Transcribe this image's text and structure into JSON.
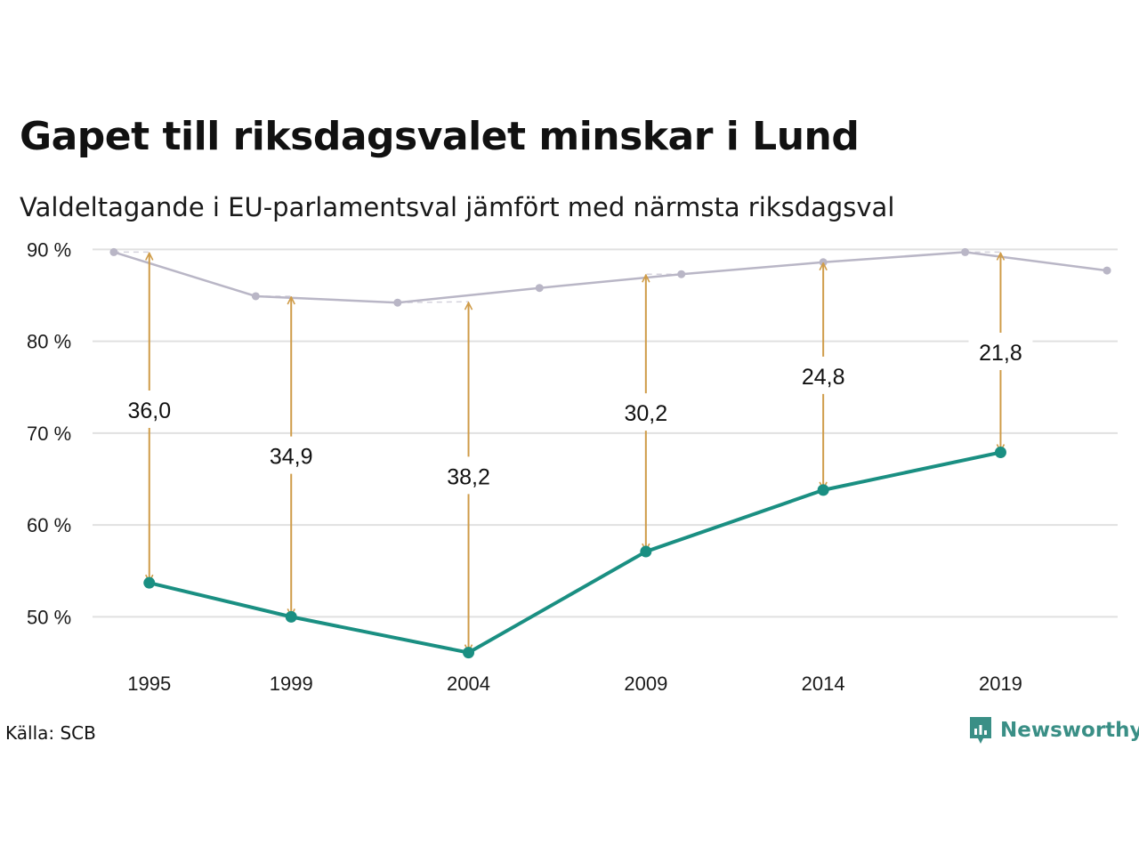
{
  "header": {
    "title": "Gapet till riksdagsvalet minskar i Lund",
    "subtitle": "Valdeltagande i EU-parlamentsval jämfört med närmsta riksdagsval"
  },
  "footer": {
    "source": "Källa: SCB",
    "brand": "Newsworthy"
  },
  "colors": {
    "eu_line": "#1a8f82",
    "riksdag_line": "#b9b6c6",
    "arrow": "#cf9c49",
    "grid": "#e0e0e0",
    "brand": "#3a8f86"
  },
  "chart_data": {
    "type": "line",
    "title": "Gapet till riksdagsvalet minskar i Lund",
    "subtitle": "Valdeltagande i EU-parlamentsval jämfört med närmsta riksdagsval",
    "y_ticks": [
      50,
      60,
      70,
      80,
      90
    ],
    "y_tick_labels": [
      "50 %",
      "60 %",
      "70 %",
      "80 %",
      "90 %"
    ],
    "ylim": [
      45,
      91
    ],
    "xlim": [
      1993.4,
      2022.3
    ],
    "x_ticks": [
      1995,
      1999,
      2004,
      2009,
      2014,
      2019
    ],
    "x_tick_labels": [
      "1995",
      "1999",
      "2004",
      "2009",
      "2014",
      "2019"
    ],
    "grid": "horizontal",
    "series": [
      {
        "key": "eu",
        "x": [
          1995,
          1999,
          2004,
          2009,
          2014,
          2019
        ],
        "values": [
          53.7,
          50.0,
          46.1,
          57.1,
          63.8,
          67.9
        ]
      },
      {
        "key": "riksdag",
        "x": [
          1994,
          1998,
          2002,
          2006,
          2010,
          2014,
          2018,
          2022
        ],
        "values": [
          89.7,
          84.9,
          84.2,
          85.8,
          87.3,
          88.6,
          89.7,
          87.7
        ]
      }
    ],
    "gaps": [
      {
        "x": 1995,
        "from": 53.7,
        "to": 89.7,
        "label": "36,0",
        "label_y": 72.5
      },
      {
        "x": 1999,
        "from": 50.0,
        "to": 84.9,
        "label": "34,9",
        "label_y": 67.5
      },
      {
        "x": 2004,
        "from": 46.1,
        "to": 84.3,
        "label": "38,2",
        "label_y": 65.3
      },
      {
        "x": 2009,
        "from": 57.1,
        "to": 87.3,
        "label": "30,2",
        "label_y": 72.2
      },
      {
        "x": 2014,
        "from": 63.8,
        "to": 88.6,
        "label": "24,8",
        "label_y": 76.2
      },
      {
        "x": 2019,
        "from": 67.9,
        "to": 89.7,
        "label": "21,8",
        "label_y": 78.8
      }
    ]
  }
}
